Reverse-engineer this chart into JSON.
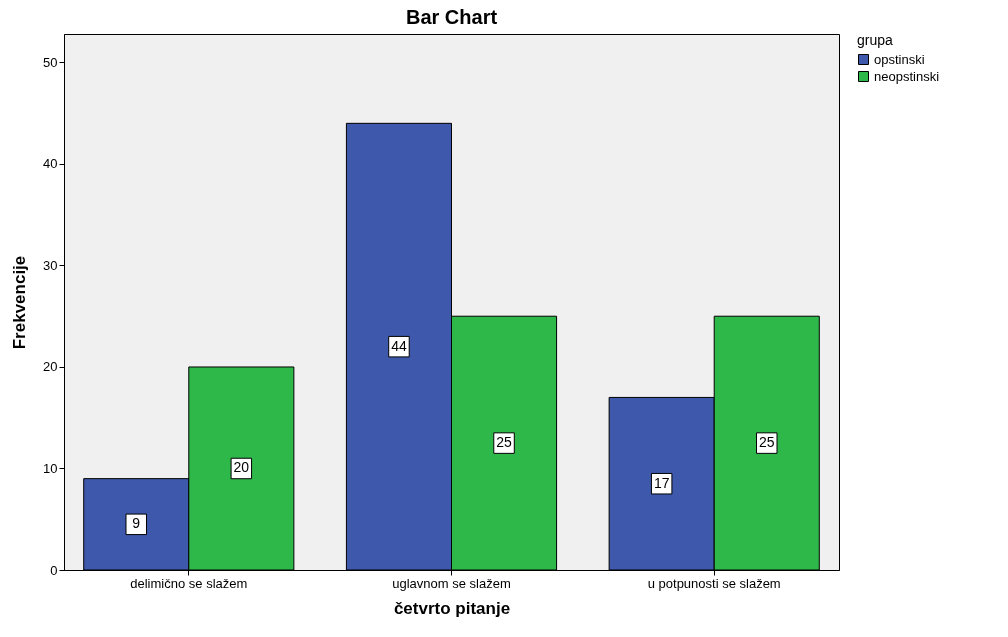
{
  "chart_data": {
    "type": "bar",
    "title": "Bar Chart",
    "xlabel": "četvrto pitanje",
    "ylabel": "Frekvencije",
    "legend_title": "grupa",
    "categories": [
      "delimično se slažem",
      "uglavnom se slažem",
      "u potpunosti se slažem"
    ],
    "series": [
      {
        "name": "opstinski",
        "color": "#3e58ac",
        "values": [
          9,
          44,
          17
        ]
      },
      {
        "name": "neopstinski",
        "color": "#2fb84a",
        "values": [
          20,
          25,
          25
        ]
      }
    ],
    "ylim": [
      0,
      52.8
    ],
    "yticks": [
      0,
      10,
      20,
      30,
      40,
      50
    ],
    "grid": false,
    "legend": "top right",
    "data_labels": true
  }
}
